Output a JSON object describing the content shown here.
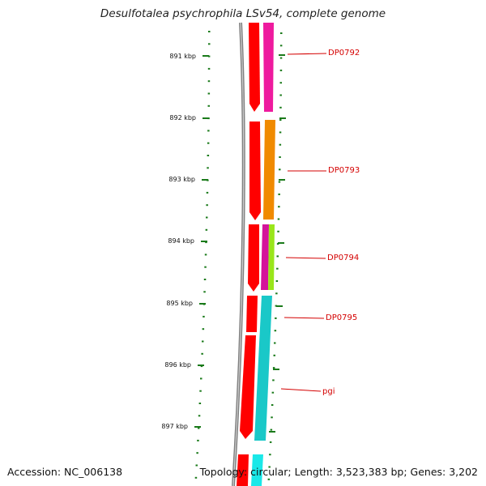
{
  "title": "Desulfotalea psychrophila LSv54, complete genome",
  "accession": "Accession: NC_006138",
  "summary": "Topology: circular; Length: 3,523,383 bp; Genes: 3,202",
  "colors": {
    "ruler": "#1a7a1a",
    "backbone": "#808080",
    "strand_arrows": "#ff0000",
    "gene_label": "#d40000",
    "feature_magenta": "#ee1a9e",
    "feature_orange": "#f08a00",
    "feature_lime": "#99e61a",
    "feature_cyan": "#1ac8c8"
  },
  "ruler_labels": [
    "891 kbp",
    "892 kbp",
    "893 kbp",
    "894 kbp",
    "895 kbp",
    "896 kbp",
    "897 kbp"
  ],
  "genes": [
    "DP0792",
    "DP0793",
    "DP0794",
    "DP0795",
    "pgi"
  ]
}
